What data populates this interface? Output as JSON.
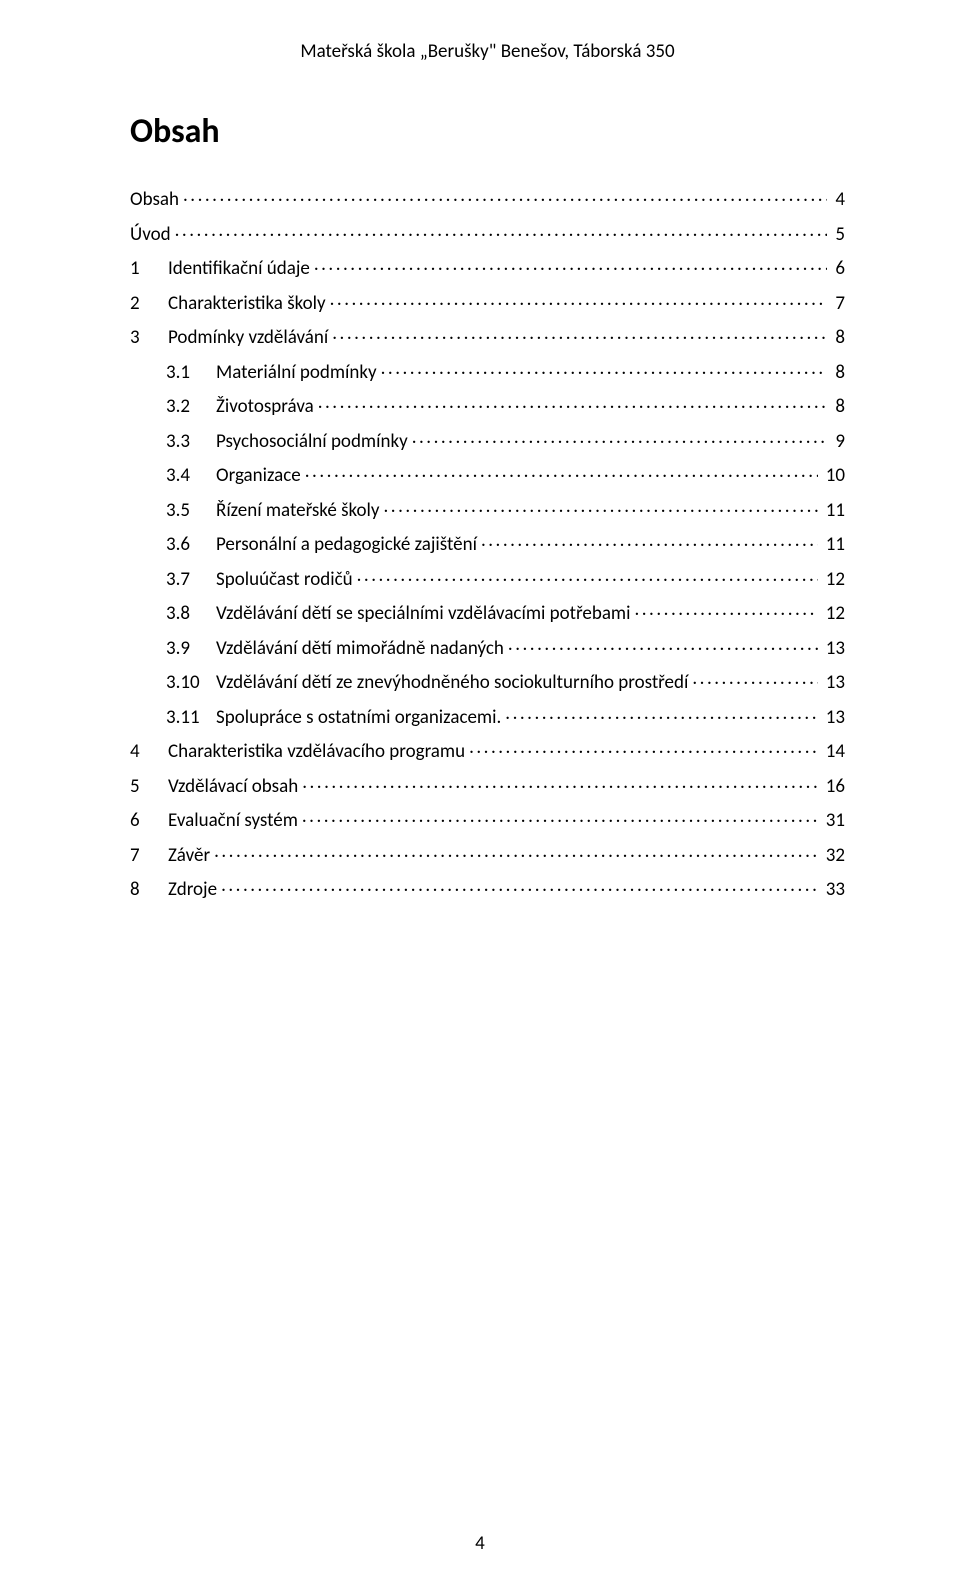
{
  "header": {
    "text": "Mateřská škola „Berušky\" Benešov, Táborská 350"
  },
  "title": "Obsah",
  "page_number": "4",
  "colors": {
    "text": "#000000",
    "background": "#ffffff"
  },
  "typography": {
    "body_font": "Calibri",
    "header_fontsize_pt": 12,
    "title_fontsize_pt": 22,
    "toc_fontsize_pt": 12
  },
  "toc": {
    "entries": [
      {
        "level": 0,
        "num": "",
        "label": "Obsah",
        "page": "4"
      },
      {
        "level": 0,
        "num": "",
        "label": "Úvod",
        "page": "5"
      },
      {
        "level": 0,
        "num": "1",
        "label": "Identifikační údaje",
        "page": "6"
      },
      {
        "level": 0,
        "num": "2",
        "label": "Charakteristika školy",
        "page": "7"
      },
      {
        "level": 0,
        "num": "3",
        "label": "Podmínky vzdělávání",
        "page": "8"
      },
      {
        "level": 1,
        "num": "3.1",
        "label": "Materiální podmínky",
        "page": "8"
      },
      {
        "level": 1,
        "num": "3.2",
        "label": "Životospráva",
        "page": "8"
      },
      {
        "level": 1,
        "num": "3.3",
        "label": "Psychosociální podmínky",
        "page": "9"
      },
      {
        "level": 1,
        "num": "3.4",
        "label": "Organizace",
        "page": "10"
      },
      {
        "level": 1,
        "num": "3.5",
        "label": "Řízení mateřské školy",
        "page": "11"
      },
      {
        "level": 1,
        "num": "3.6",
        "label": "Personální a pedagogické zajištění",
        "page": "11"
      },
      {
        "level": 1,
        "num": "3.7",
        "label": "Spoluúčast rodičů",
        "page": "12"
      },
      {
        "level": 1,
        "num": "3.8",
        "label": "Vzdělávání dětí se speciálními vzdělávacími potřebami",
        "page": "12"
      },
      {
        "level": 1,
        "num": "3.9",
        "label": "Vzdělávání dětí mimořádně nadaných",
        "page": "13"
      },
      {
        "level": 1,
        "num": "3.10",
        "label": "Vzdělávání dětí ze znevýhodněného sociokulturního prostředí",
        "page": "13"
      },
      {
        "level": 1,
        "num": "3.11",
        "label": "Spolupráce s ostatními organizacemi.",
        "page": "13"
      },
      {
        "level": 0,
        "num": "4",
        "label": "Charakteristika vzdělávacího programu",
        "page": "14"
      },
      {
        "level": 0,
        "num": "5",
        "label": "Vzdělávací obsah",
        "page": "16"
      },
      {
        "level": 0,
        "num": "6",
        "label": "Evaluační systém",
        "page": "31"
      },
      {
        "level": 0,
        "num": "7",
        "label": "Závěr",
        "page": "32"
      },
      {
        "level": 0,
        "num": "8",
        "label": "Zdroje",
        "page": "33"
      }
    ]
  }
}
